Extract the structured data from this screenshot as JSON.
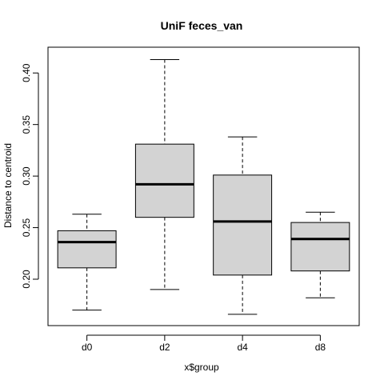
{
  "chart_data": {
    "type": "boxplot",
    "title": "UniF feces_van",
    "xlabel": "x$group",
    "ylabel": "Distance to centroid",
    "ylim": [
      0.155,
      0.425
    ],
    "yticks": [
      0.2,
      0.25,
      0.3,
      0.35,
      0.4
    ],
    "ytick_labels": [
      "0.20",
      "0.25",
      "0.30",
      "0.35",
      "0.40"
    ],
    "grid": false,
    "legend": "none",
    "box_color": "#d3d3d3",
    "categories": [
      "d0",
      "d2",
      "d4",
      "d8"
    ],
    "boxes": [
      {
        "category": "d0",
        "min": 0.17,
        "q1": 0.211,
        "median": 0.236,
        "q3": 0.247,
        "max": 0.263
      },
      {
        "category": "d2",
        "min": 0.19,
        "q1": 0.26,
        "median": 0.292,
        "q3": 0.331,
        "max": 0.413
      },
      {
        "category": "d4",
        "min": 0.166,
        "q1": 0.204,
        "median": 0.256,
        "q3": 0.301,
        "max": 0.338
      },
      {
        "category": "d8",
        "min": 0.182,
        "q1": 0.208,
        "median": 0.239,
        "q3": 0.255,
        "max": 0.265
      }
    ]
  }
}
